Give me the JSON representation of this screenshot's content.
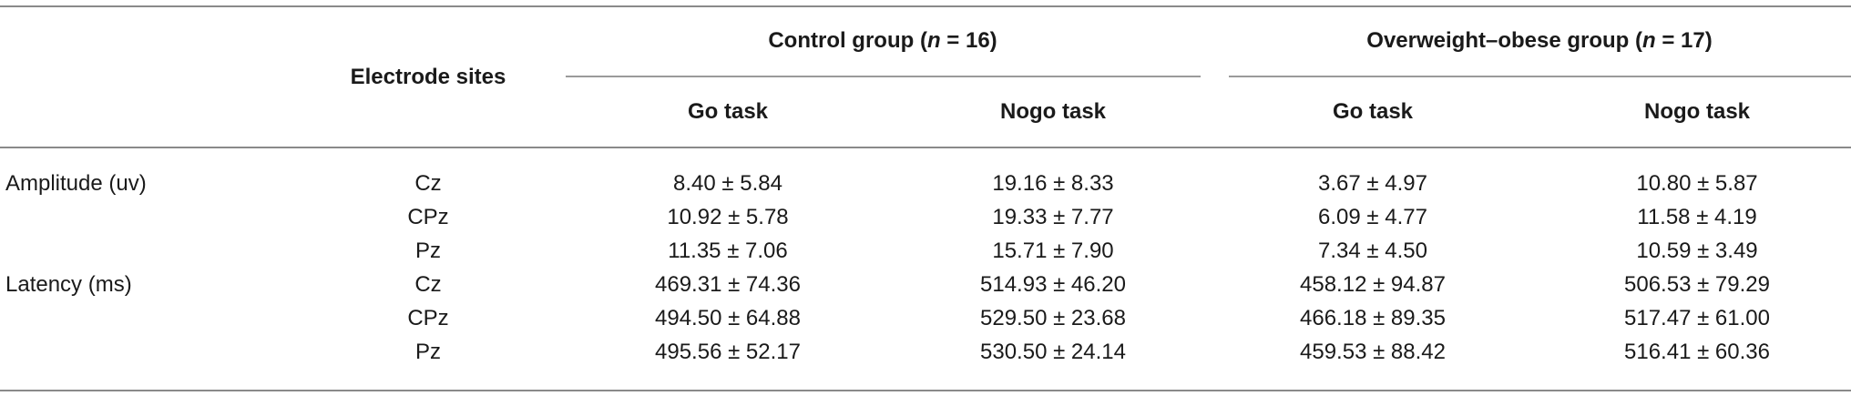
{
  "table": {
    "header": {
      "electrode_sites": "Electrode sites",
      "control_group": {
        "prefix": "Control group (",
        "n_var": "n",
        "suffix": " = 16)"
      },
      "ow_group": {
        "prefix": "Overweight–obese group (",
        "n_var": "n",
        "suffix": " = 17)"
      },
      "go_task": "Go task",
      "nogo_task": "Nogo task"
    },
    "rows": [
      {
        "measure": "Amplitude (uv)",
        "site": "Cz",
        "ctrl_go": "8.40 ± 5.84",
        "ctrl_nogo": "19.16 ± 8.33",
        "ow_go": "3.67 ± 4.97",
        "ow_nogo": "10.80 ± 5.87"
      },
      {
        "measure": "",
        "site": "CPz",
        "ctrl_go": "10.92 ± 5.78",
        "ctrl_nogo": "19.33 ± 7.77",
        "ow_go": "6.09 ± 4.77",
        "ow_nogo": "11.58 ± 4.19"
      },
      {
        "measure": "",
        "site": "Pz",
        "ctrl_go": "11.35 ± 7.06",
        "ctrl_nogo": "15.71 ± 7.90",
        "ow_go": "7.34 ± 4.50",
        "ow_nogo": "10.59 ± 3.49"
      },
      {
        "measure": "Latency (ms)",
        "site": "Cz",
        "ctrl_go": "469.31 ± 74.36",
        "ctrl_nogo": "514.93 ± 46.20",
        "ow_go": "458.12 ± 94.87",
        "ow_nogo": "506.53 ± 79.29"
      },
      {
        "measure": "",
        "site": "CPz",
        "ctrl_go": "494.50 ± 64.88",
        "ctrl_nogo": "529.50 ± 23.68",
        "ow_go": "466.18 ± 89.35",
        "ow_nogo": "517.47 ± 61.00"
      },
      {
        "measure": "",
        "site": "Pz",
        "ctrl_go": "495.56 ± 52.17",
        "ctrl_nogo": "530.50 ± 24.14",
        "ow_go": "459.53 ± 88.42",
        "ow_nogo": "516.41 ± 60.36"
      }
    ]
  }
}
